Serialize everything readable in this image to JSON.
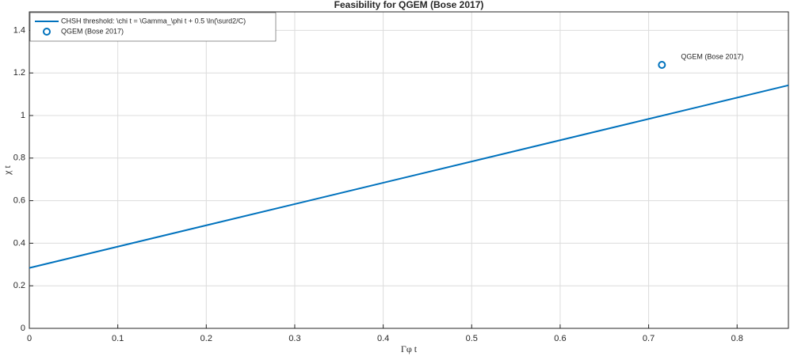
{
  "chart_data": {
    "type": "line",
    "title": "Feasibility for QGEM (Bose 2017)",
    "xlabel": "Γφ t",
    "ylabel": "χ t",
    "xlim": [
      0,
      0.858
    ],
    "ylim": [
      0,
      1.487
    ],
    "xticks": [
      0,
      0.1,
      0.2,
      0.3,
      0.4,
      0.5,
      0.6,
      0.7,
      0.8
    ],
    "yticks": [
      0,
      0.2,
      0.4,
      0.6,
      0.8,
      1,
      1.2,
      1.4
    ],
    "grid": true,
    "legend": "upper left",
    "series": [
      {
        "name": "CHSH threshold: \\chi t = \\Gamma_\\phi t + 0.5 \\ln(\\surd2/C)",
        "color": "#0072bd",
        "x": [
          0,
          0.858
        ],
        "values": [
          0.284,
          1.142
        ]
      },
      {
        "name": "QGEM (Bose 2017)",
        "color": "#0072bd",
        "marker": "circle",
        "x": [
          0.715
        ],
        "values": [
          1.238
        ]
      }
    ],
    "annotation": "QGEM (Bose 2017)"
  }
}
